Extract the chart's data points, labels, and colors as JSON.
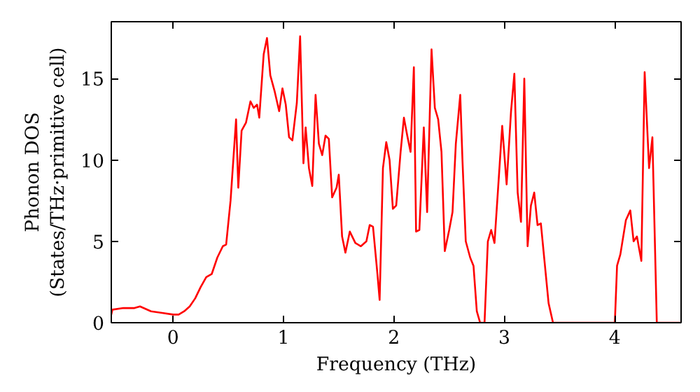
{
  "chart_data": {
    "type": "line",
    "xlabel": "Frequency (THz)",
    "ylabel": "Phonon DOS\n(States/THz·primitive cell)",
    "x": [
      -0.56,
      -0.55,
      -0.45,
      -0.35,
      -0.3,
      -0.2,
      -0.1,
      0,
      0.05,
      0.1,
      0.15,
      0.2,
      0.25,
      0.3,
      0.35,
      0.4,
      0.45,
      0.48,
      0.52,
      0.57,
      0.59,
      0.62,
      0.66,
      0.7,
      0.73,
      0.76,
      0.78,
      0.82,
      0.85,
      0.88,
      0.92,
      0.96,
      0.99,
      1.02,
      1.05,
      1.08,
      1.12,
      1.15,
      1.18,
      1.2,
      1.23,
      1.26,
      1.29,
      1.32,
      1.35,
      1.38,
      1.41,
      1.44,
      1.48,
      1.5,
      1.53,
      1.56,
      1.6,
      1.65,
      1.7,
      1.75,
      1.78,
      1.81,
      1.85,
      1.87,
      1.9,
      1.93,
      1.96,
      1.99,
      2.02,
      2.06,
      2.09,
      2.12,
      2.15,
      2.18,
      2.2,
      2.23,
      2.27,
      2.3,
      2.34,
      2.37,
      2.4,
      2.43,
      2.46,
      2.5,
      2.53,
      2.56,
      2.6,
      2.62,
      2.65,
      2.69,
      2.72,
      2.75,
      2.78,
      2.82,
      2.85,
      2.88,
      2.91,
      2.95,
      2.98,
      3.02,
      3.06,
      3.09,
      3.12,
      3.15,
      3.18,
      3.21,
      3.24,
      3.27,
      3.3,
      3.33,
      3.36,
      3.4,
      3.44,
      4.0,
      4.02,
      4.05,
      4.1,
      4.14,
      4.17,
      4.2,
      4.24,
      4.27,
      4.31,
      4.34,
      4.38,
      4.6
    ],
    "series": [
      {
        "color": "#ff0000",
        "values": [
          0.5,
          0.8,
          0.9,
          0.9,
          1.0,
          0.7,
          0.6,
          0.5,
          0.5,
          0.7,
          1.0,
          1.5,
          2.2,
          2.8,
          3.0,
          4.0,
          4.7,
          4.8,
          7.5,
          12.5,
          8.3,
          11.8,
          12.3,
          13.6,
          13.2,
          13.4,
          12.6,
          16.5,
          17.5,
          15.2,
          14.2,
          13.0,
          14.4,
          13.4,
          11.4,
          11.2,
          13.5,
          17.6,
          9.8,
          12.0,
          9.5,
          8.4,
          14.0,
          11.0,
          10.3,
          11.5,
          11.3,
          7.7,
          8.3,
          9.1,
          5.3,
          4.3,
          5.6,
          4.9,
          4.7,
          5.0,
          6.0,
          5.9,
          3.0,
          1.4,
          9.5,
          11.1,
          10.0,
          7.0,
          7.2,
          10.5,
          12.6,
          11.5,
          10.5,
          15.7,
          5.6,
          5.7,
          12.0,
          6.8,
          16.8,
          13.2,
          12.5,
          10.5,
          4.4,
          5.7,
          6.8,
          11.0,
          14.0,
          10.0,
          5.0,
          4.0,
          3.5,
          0.7,
          0.0,
          0.0,
          5.0,
          5.7,
          4.9,
          9.0,
          12.1,
          8.5,
          13.0,
          15.3,
          8.0,
          6.2,
          15.0,
          4.7,
          7.2,
          8.0,
          6.0,
          6.1,
          4.0,
          1.2,
          0.0,
          0.0,
          3.5,
          4.2,
          6.3,
          6.9,
          5.0,
          5.3,
          3.8,
          15.4,
          9.5,
          11.4,
          0.0,
          0.0
        ]
      }
    ],
    "xlim": [
      -0.56,
      4.6
    ],
    "ylim": [
      0,
      18.5
    ],
    "xticks": [
      0,
      1,
      2,
      3,
      4
    ],
    "yticks": [
      0,
      5,
      10,
      15
    ],
    "grid": false,
    "line_style": "solid"
  }
}
